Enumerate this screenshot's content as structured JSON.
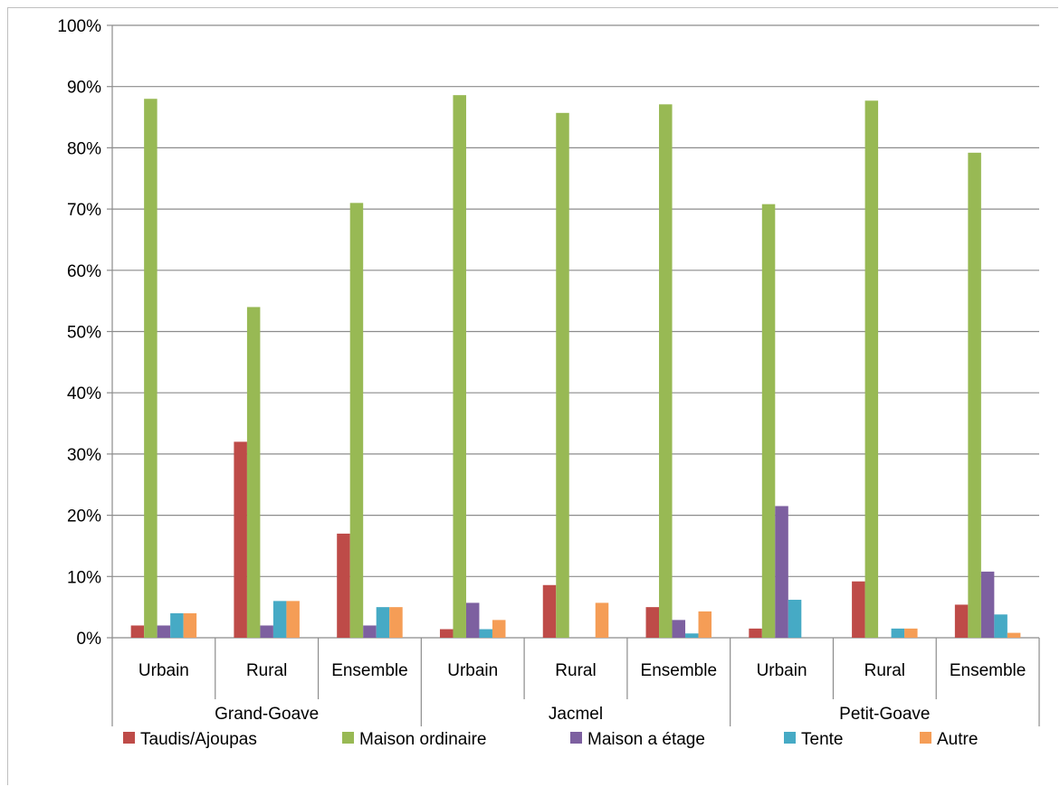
{
  "chart_data": {
    "type": "bar",
    "title": "",
    "xlabel": "",
    "ylabel": "",
    "ylim": [
      0,
      1
    ],
    "y_ticks": [
      "0%",
      "10%",
      "20%",
      "30%",
      "40%",
      "50%",
      "60%",
      "70%",
      "80%",
      "90%",
      "100%"
    ],
    "grid": true,
    "legend_position": "bottom",
    "groups": [
      {
        "label": "Grand-Goave",
        "categories": [
          "Urbain",
          "Rural",
          "Ensemble"
        ]
      },
      {
        "label": "Jacmel",
        "categories": [
          "Urbain",
          "Rural",
          "Ensemble"
        ]
      },
      {
        "label": "Petit-Goave",
        "categories": [
          "Urbain",
          "Rural",
          "Ensemble"
        ]
      }
    ],
    "series": [
      {
        "name": "Taudis/Ajoupas",
        "color": "#be4b48",
        "values": [
          0.02,
          0.32,
          0.17,
          0.014,
          0.086,
          0.05,
          0.015,
          0.092,
          0.054
        ]
      },
      {
        "name": "Maison ordinaire",
        "color": "#98b954",
        "values": [
          0.88,
          0.54,
          0.71,
          0.886,
          0.857,
          0.871,
          0.708,
          0.877,
          0.792
        ]
      },
      {
        "name": "Maison a étage",
        "color": "#7d60a0",
        "values": [
          0.02,
          0.02,
          0.02,
          0.057,
          0.0,
          0.029,
          0.215,
          0.0,
          0.108
        ]
      },
      {
        "name": "Tente",
        "color": "#46aac5",
        "values": [
          0.04,
          0.06,
          0.05,
          0.014,
          0.0,
          0.007,
          0.062,
          0.015,
          0.038
        ]
      },
      {
        "name": "Autre",
        "color": "#f59d56",
        "values": [
          0.04,
          0.06,
          0.05,
          0.029,
          0.057,
          0.043,
          0.0,
          0.015,
          0.008
        ]
      }
    ]
  }
}
